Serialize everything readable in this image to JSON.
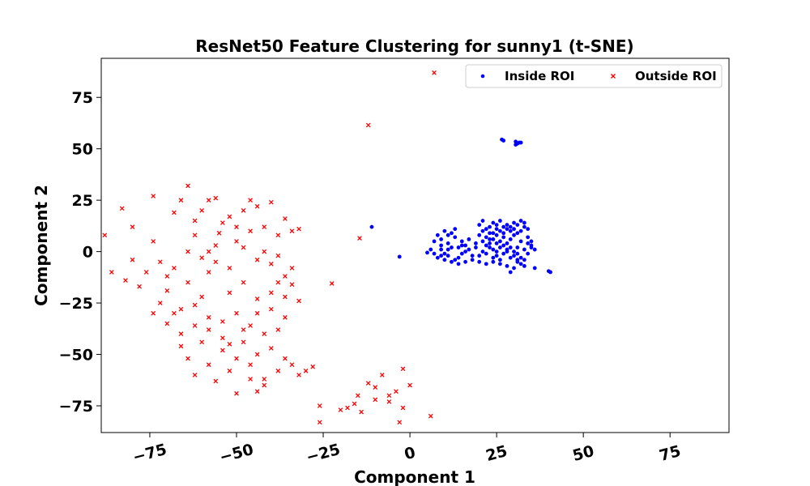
{
  "chart_data": {
    "type": "scatter",
    "title": "ResNet50 Feature Clustering for sunny1 (t-SNE)",
    "xlabel": "Component 1",
    "ylabel": "Component 2",
    "xlim": [
      -89,
      92
    ],
    "ylim": [
      -88,
      94
    ],
    "xticks": [
      -75,
      -50,
      -25,
      0,
      25,
      50,
      75
    ],
    "yticks": [
      -75,
      -50,
      -25,
      0,
      25,
      50,
      75
    ],
    "xtick_labels": [
      "−75",
      "−50",
      "−25",
      "0",
      "25",
      "50",
      "75"
    ],
    "ytick_labels": [
      "−75",
      "−50",
      "−25",
      "0",
      "25",
      "50",
      "75"
    ],
    "grid": false,
    "legend_position": "top-right",
    "series": [
      {
        "name": "Inside ROI",
        "color": "#0000ff",
        "marker": "circle",
        "points": [
          [
            26.5,
            54.5
          ],
          [
            27,
            54
          ],
          [
            30.5,
            53.5
          ],
          [
            31.5,
            53
          ],
          [
            30.5,
            52
          ],
          [
            31,
            52.5
          ],
          [
            32,
            53
          ],
          [
            -11,
            12
          ],
          [
            -3,
            -2.5
          ],
          [
            5,
            -0.5
          ],
          [
            40,
            -9.5
          ],
          [
            40.5,
            -10
          ],
          [
            8,
            8
          ],
          [
            9,
            6
          ],
          [
            10,
            10
          ],
          [
            11,
            4
          ],
          [
            12,
            9
          ],
          [
            13,
            7
          ],
          [
            14,
            2
          ],
          [
            15,
            5
          ],
          [
            16,
            3
          ],
          [
            17,
            1
          ],
          [
            18,
            -2
          ],
          [
            19,
            4
          ],
          [
            20,
            13
          ],
          [
            21,
            15
          ],
          [
            22,
            11
          ],
          [
            23,
            12
          ],
          [
            24,
            14
          ],
          [
            25,
            13
          ],
          [
            26,
            15
          ],
          [
            27,
            12
          ],
          [
            28,
            11
          ],
          [
            29,
            10
          ],
          [
            30,
            14
          ],
          [
            31,
            9
          ],
          [
            32,
            15
          ],
          [
            33,
            12
          ],
          [
            34,
            11
          ],
          [
            35,
            3
          ],
          [
            24,
            6
          ],
          [
            25,
            8
          ],
          [
            26,
            5
          ],
          [
            27,
            7
          ],
          [
            28,
            4
          ],
          [
            29,
            6
          ],
          [
            30,
            8
          ],
          [
            31,
            2
          ],
          [
            32,
            5
          ],
          [
            33,
            1
          ],
          [
            8,
            -3
          ],
          [
            9,
            -2
          ],
          [
            10,
            -1
          ],
          [
            11,
            1
          ],
          [
            12,
            2
          ],
          [
            13,
            -4
          ],
          [
            14,
            -3
          ],
          [
            15,
            -1
          ],
          [
            16,
            0
          ],
          [
            20,
            -2
          ],
          [
            21,
            0
          ],
          [
            22,
            -1
          ],
          [
            23,
            2
          ],
          [
            24,
            -3
          ],
          [
            25,
            -2
          ],
          [
            26,
            -4
          ],
          [
            27,
            -1
          ],
          [
            28,
            0
          ],
          [
            29,
            -3
          ],
          [
            30,
            -2
          ],
          [
            31,
            -5
          ],
          [
            32,
            -3
          ],
          [
            33,
            -4
          ],
          [
            34,
            -1
          ],
          [
            35,
            2
          ],
          [
            36,
            1
          ],
          [
            22,
            3
          ],
          [
            23,
            4
          ],
          [
            24,
            1
          ],
          [
            25,
            0
          ],
          [
            26,
            2
          ],
          [
            27,
            3
          ],
          [
            28,
            1
          ],
          [
            29,
            2
          ],
          [
            30,
            0
          ],
          [
            31,
            -1
          ],
          [
            7,
            5
          ],
          [
            9,
            1
          ],
          [
            11,
            8
          ],
          [
            13,
            11
          ],
          [
            15,
            3
          ],
          [
            17,
            6
          ],
          [
            19,
            2
          ],
          [
            21,
            5
          ],
          [
            23,
            9
          ],
          [
            25,
            11
          ],
          [
            26,
            -6
          ],
          [
            28,
            -7
          ],
          [
            30,
            -8
          ],
          [
            32,
            -6
          ],
          [
            29,
            -10
          ],
          [
            31,
            -4
          ],
          [
            33,
            -7
          ],
          [
            36,
            -8
          ],
          [
            34,
            4
          ],
          [
            18,
            -4
          ],
          [
            16,
            -5
          ],
          [
            14,
            -6
          ],
          [
            12,
            -5
          ],
          [
            10,
            -4
          ],
          [
            6,
            1
          ],
          [
            7,
            -1
          ],
          [
            9,
            3
          ],
          [
            11,
            -2
          ],
          [
            20,
            8
          ],
          [
            21,
            10
          ],
          [
            22,
            7
          ],
          [
            23,
            6
          ],
          [
            24,
            9
          ],
          [
            25,
            4
          ],
          [
            26,
            10
          ],
          [
            27,
            9
          ],
          [
            28,
            13
          ],
          [
            29,
            12
          ],
          [
            30,
            11
          ],
          [
            31,
            13
          ],
          [
            32,
            10
          ],
          [
            33,
            14
          ],
          [
            34,
            7
          ],
          [
            35,
            5
          ],
          [
            20,
            -5
          ],
          [
            22,
            -6
          ],
          [
            24,
            -5
          ]
        ]
      },
      {
        "name": "Outside ROI",
        "color": "#ff0000",
        "marker": "x",
        "points": [
          [
            7,
            87
          ],
          [
            -12,
            61.5
          ],
          [
            -14.5,
            6.5
          ],
          [
            -22.5,
            -15.5
          ],
          [
            -88,
            8
          ],
          [
            -83,
            21
          ],
          [
            -80,
            12
          ],
          [
            -74,
            27
          ],
          [
            -74,
            5
          ],
          [
            -72,
            -5
          ],
          [
            -70,
            -12
          ],
          [
            -68,
            19
          ],
          [
            -66,
            25
          ],
          [
            -64,
            32
          ],
          [
            -62,
            15
          ],
          [
            -60,
            20
          ],
          [
            -58,
            25
          ],
          [
            -56,
            26
          ],
          [
            -55,
            9
          ],
          [
            -52,
            17
          ],
          [
            -50,
            12
          ],
          [
            -48,
            20
          ],
          [
            -46,
            25
          ],
          [
            -44,
            22
          ],
          [
            -42,
            12
          ],
          [
            -40,
            24
          ],
          [
            -38,
            8
          ],
          [
            -36,
            16
          ],
          [
            -34,
            10
          ],
          [
            -32,
            11
          ],
          [
            -86,
            -10
          ],
          [
            -82,
            -14
          ],
          [
            -78,
            -17
          ],
          [
            -74,
            -30
          ],
          [
            -70,
            -19
          ],
          [
            -68,
            -30
          ],
          [
            -66,
            -28
          ],
          [
            -64,
            -15
          ],
          [
            -62,
            -26
          ],
          [
            -60,
            -22
          ],
          [
            -58,
            -10
          ],
          [
            -56,
            -5
          ],
          [
            -54,
            -34
          ],
          [
            -52,
            -20
          ],
          [
            -50,
            -30
          ],
          [
            -48,
            -15
          ],
          [
            -46,
            -36
          ],
          [
            -44,
            -23
          ],
          [
            -42,
            -40
          ],
          [
            -40,
            -28
          ],
          [
            -38,
            -38
          ],
          [
            -36,
            -32
          ],
          [
            -34,
            -16
          ],
          [
            -32,
            -24
          ],
          [
            -80,
            -4
          ],
          [
            -76,
            -10
          ],
          [
            -72,
            -25
          ],
          [
            -68,
            -8
          ],
          [
            -64,
            0
          ],
          [
            -60,
            -3
          ],
          [
            -56,
            3
          ],
          [
            -52,
            -8
          ],
          [
            -48,
            2
          ],
          [
            -44,
            -4
          ],
          [
            -40,
            -6
          ],
          [
            -36,
            -12
          ],
          [
            -66,
            -46
          ],
          [
            -64,
            -52
          ],
          [
            -62,
            -60
          ],
          [
            -60,
            -44
          ],
          [
            -58,
            -55
          ],
          [
            -56,
            -63
          ],
          [
            -54,
            -48
          ],
          [
            -52,
            -58
          ],
          [
            -50,
            -69
          ],
          [
            -48,
            -44
          ],
          [
            -46,
            -55
          ],
          [
            -44,
            -50
          ],
          [
            -42,
            -62
          ],
          [
            -40,
            -47
          ],
          [
            -38,
            -58
          ],
          [
            -36,
            -52
          ],
          [
            -34,
            -55
          ],
          [
            -32,
            -60
          ],
          [
            -30,
            -58
          ],
          [
            -28,
            -56
          ],
          [
            -26,
            -75
          ],
          [
            -26,
            -83
          ],
          [
            -20,
            -77
          ],
          [
            -16,
            -74
          ],
          [
            -14,
            -78
          ],
          [
            -12,
            -64
          ],
          [
            -10,
            -66
          ],
          [
            -8,
            -60
          ],
          [
            -6,
            -70
          ],
          [
            -4,
            -68
          ],
          [
            -3,
            -83
          ],
          [
            -2,
            -76
          ],
          [
            0,
            -65
          ],
          [
            -2,
            -57
          ],
          [
            6,
            -80
          ],
          [
            -18,
            -76
          ],
          [
            -15,
            -70
          ],
          [
            -10,
            -72
          ],
          [
            -6,
            -73
          ],
          [
            -42,
            -65
          ],
          [
            -44,
            -68
          ],
          [
            -46,
            -62
          ],
          [
            -50,
            -52
          ],
          [
            -54,
            -42
          ],
          [
            -58,
            -38
          ],
          [
            -52,
            -45
          ],
          [
            -48,
            -38
          ],
          [
            -44,
            -30
          ],
          [
            -40,
            -20
          ],
          [
            -38,
            -15
          ],
          [
            -36,
            -22
          ],
          [
            -58,
            -32
          ],
          [
            -62,
            -36
          ],
          [
            -66,
            -40
          ],
          [
            -70,
            -35
          ],
          [
            -62,
            8
          ],
          [
            -58,
            0
          ],
          [
            -54,
            14
          ],
          [
            -50,
            5
          ],
          [
            -46,
            10
          ],
          [
            -42,
            0
          ],
          [
            -38,
            -2
          ],
          [
            -34,
            -8
          ]
        ]
      }
    ]
  }
}
